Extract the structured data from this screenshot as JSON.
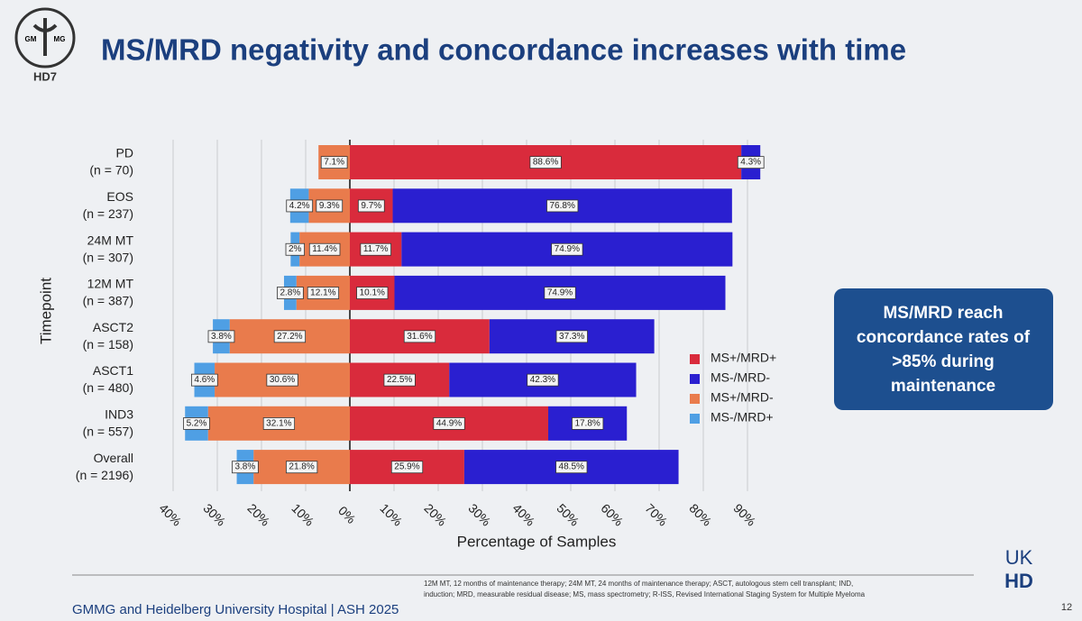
{
  "logo": {
    "left": "GM",
    "right": "MG",
    "study": "HD7"
  },
  "chart_data": {
    "type": "diverging-bar",
    "title": "MS/MRD negativity and concordance increases with time",
    "x_label": "Percentage of Samples",
    "y_label": "Timepoint",
    "categories": [
      [
        "PD",
        "(n = 70)"
      ],
      [
        "EOS",
        "(n = 237)"
      ],
      [
        "24M MT",
        "(n = 307)"
      ],
      [
        "12M MT",
        "(n = 387)"
      ],
      [
        "ASCT2",
        "(n = 158)"
      ],
      [
        "ASCT1",
        "(n = 480)"
      ],
      [
        "IND3",
        "(n = 557)"
      ],
      [
        "Overall",
        "(n = 2196)"
      ]
    ],
    "series": [
      {
        "name": "MS+/MRD+",
        "color": "#d92b3c",
        "values": [
          88.6,
          9.7,
          11.7,
          10.1,
          31.6,
          22.5,
          44.9,
          25.9
        ],
        "value_labels": [
          "88.6%",
          "9.7%",
          "11.7%",
          "10.1%",
          "31.6%",
          "22.5%",
          "44.9%",
          "25.9%"
        ]
      },
      {
        "name": "MS-/MRD-",
        "color": "#2a1fd0",
        "values": [
          4.3,
          76.8,
          74.9,
          74.9,
          37.3,
          42.3,
          17.8,
          48.5
        ],
        "value_labels": [
          "4.3%",
          "76.8%",
          "74.9%",
          "74.9%",
          "37.3%",
          "42.3%",
          "17.8%",
          "48.5%"
        ]
      },
      {
        "name": "MS+/MRD-",
        "color": "#e97b4c",
        "values": [
          -7.1,
          -9.3,
          -11.4,
          -12.1,
          -27.2,
          -30.6,
          -32.1,
          -21.8
        ],
        "value_labels": [
          "7.1%",
          "9.3%",
          "11.4%",
          "12.1%",
          "27.2%",
          "30.6%",
          "32.1%",
          "21.8%"
        ]
      },
      {
        "name": "MS-/MRD+",
        "color": "#4f9fe4",
        "values": [
          null,
          -4.2,
          -2,
          -2.8,
          -3.8,
          -4.6,
          -5.2,
          -3.8
        ],
        "value_labels": [
          null,
          "4.2%",
          "2%",
          "2.8%",
          "3.8%",
          "4.6%",
          "5.2%",
          "3.8%"
        ]
      }
    ],
    "xlim": [
      -40,
      90
    ],
    "xticks": [
      {
        "value": -40,
        "label": "40%"
      },
      {
        "value": -30,
        "label": "30%"
      },
      {
        "value": -20,
        "label": "20%"
      },
      {
        "value": -10,
        "label": "10%"
      },
      {
        "value": 0,
        "label": "0%"
      },
      {
        "value": 10,
        "label": "10%"
      },
      {
        "value": 20,
        "label": "20%"
      },
      {
        "value": 30,
        "label": "30%"
      },
      {
        "value": 40,
        "label": "40%"
      },
      {
        "value": 50,
        "label": "50%"
      },
      {
        "value": 60,
        "label": "60%"
      },
      {
        "value": 70,
        "label": "70%"
      },
      {
        "value": 80,
        "label": "80%"
      },
      {
        "value": 90,
        "label": "90%"
      }
    ],
    "grid": true
  },
  "callout": [
    "MS/MRD reach",
    "concordance rates of",
    ">85% during",
    "maintenance"
  ],
  "footer": {
    "source": "GMMG and Heidelberg University Hospital | ASH 2025",
    "notes": [
      "12M MT, 12 months of maintenance therapy; 24M MT, 24 months of maintenance therapy; ASCT, autologous stem cell transplant; IND,",
      "induction; MRD, measurable residual disease; MS, mass spectrometry; R-ISS, Revised International Staging System for Multiple Myeloma"
    ],
    "brand": [
      "UK",
      "HD"
    ],
    "page": "12"
  }
}
